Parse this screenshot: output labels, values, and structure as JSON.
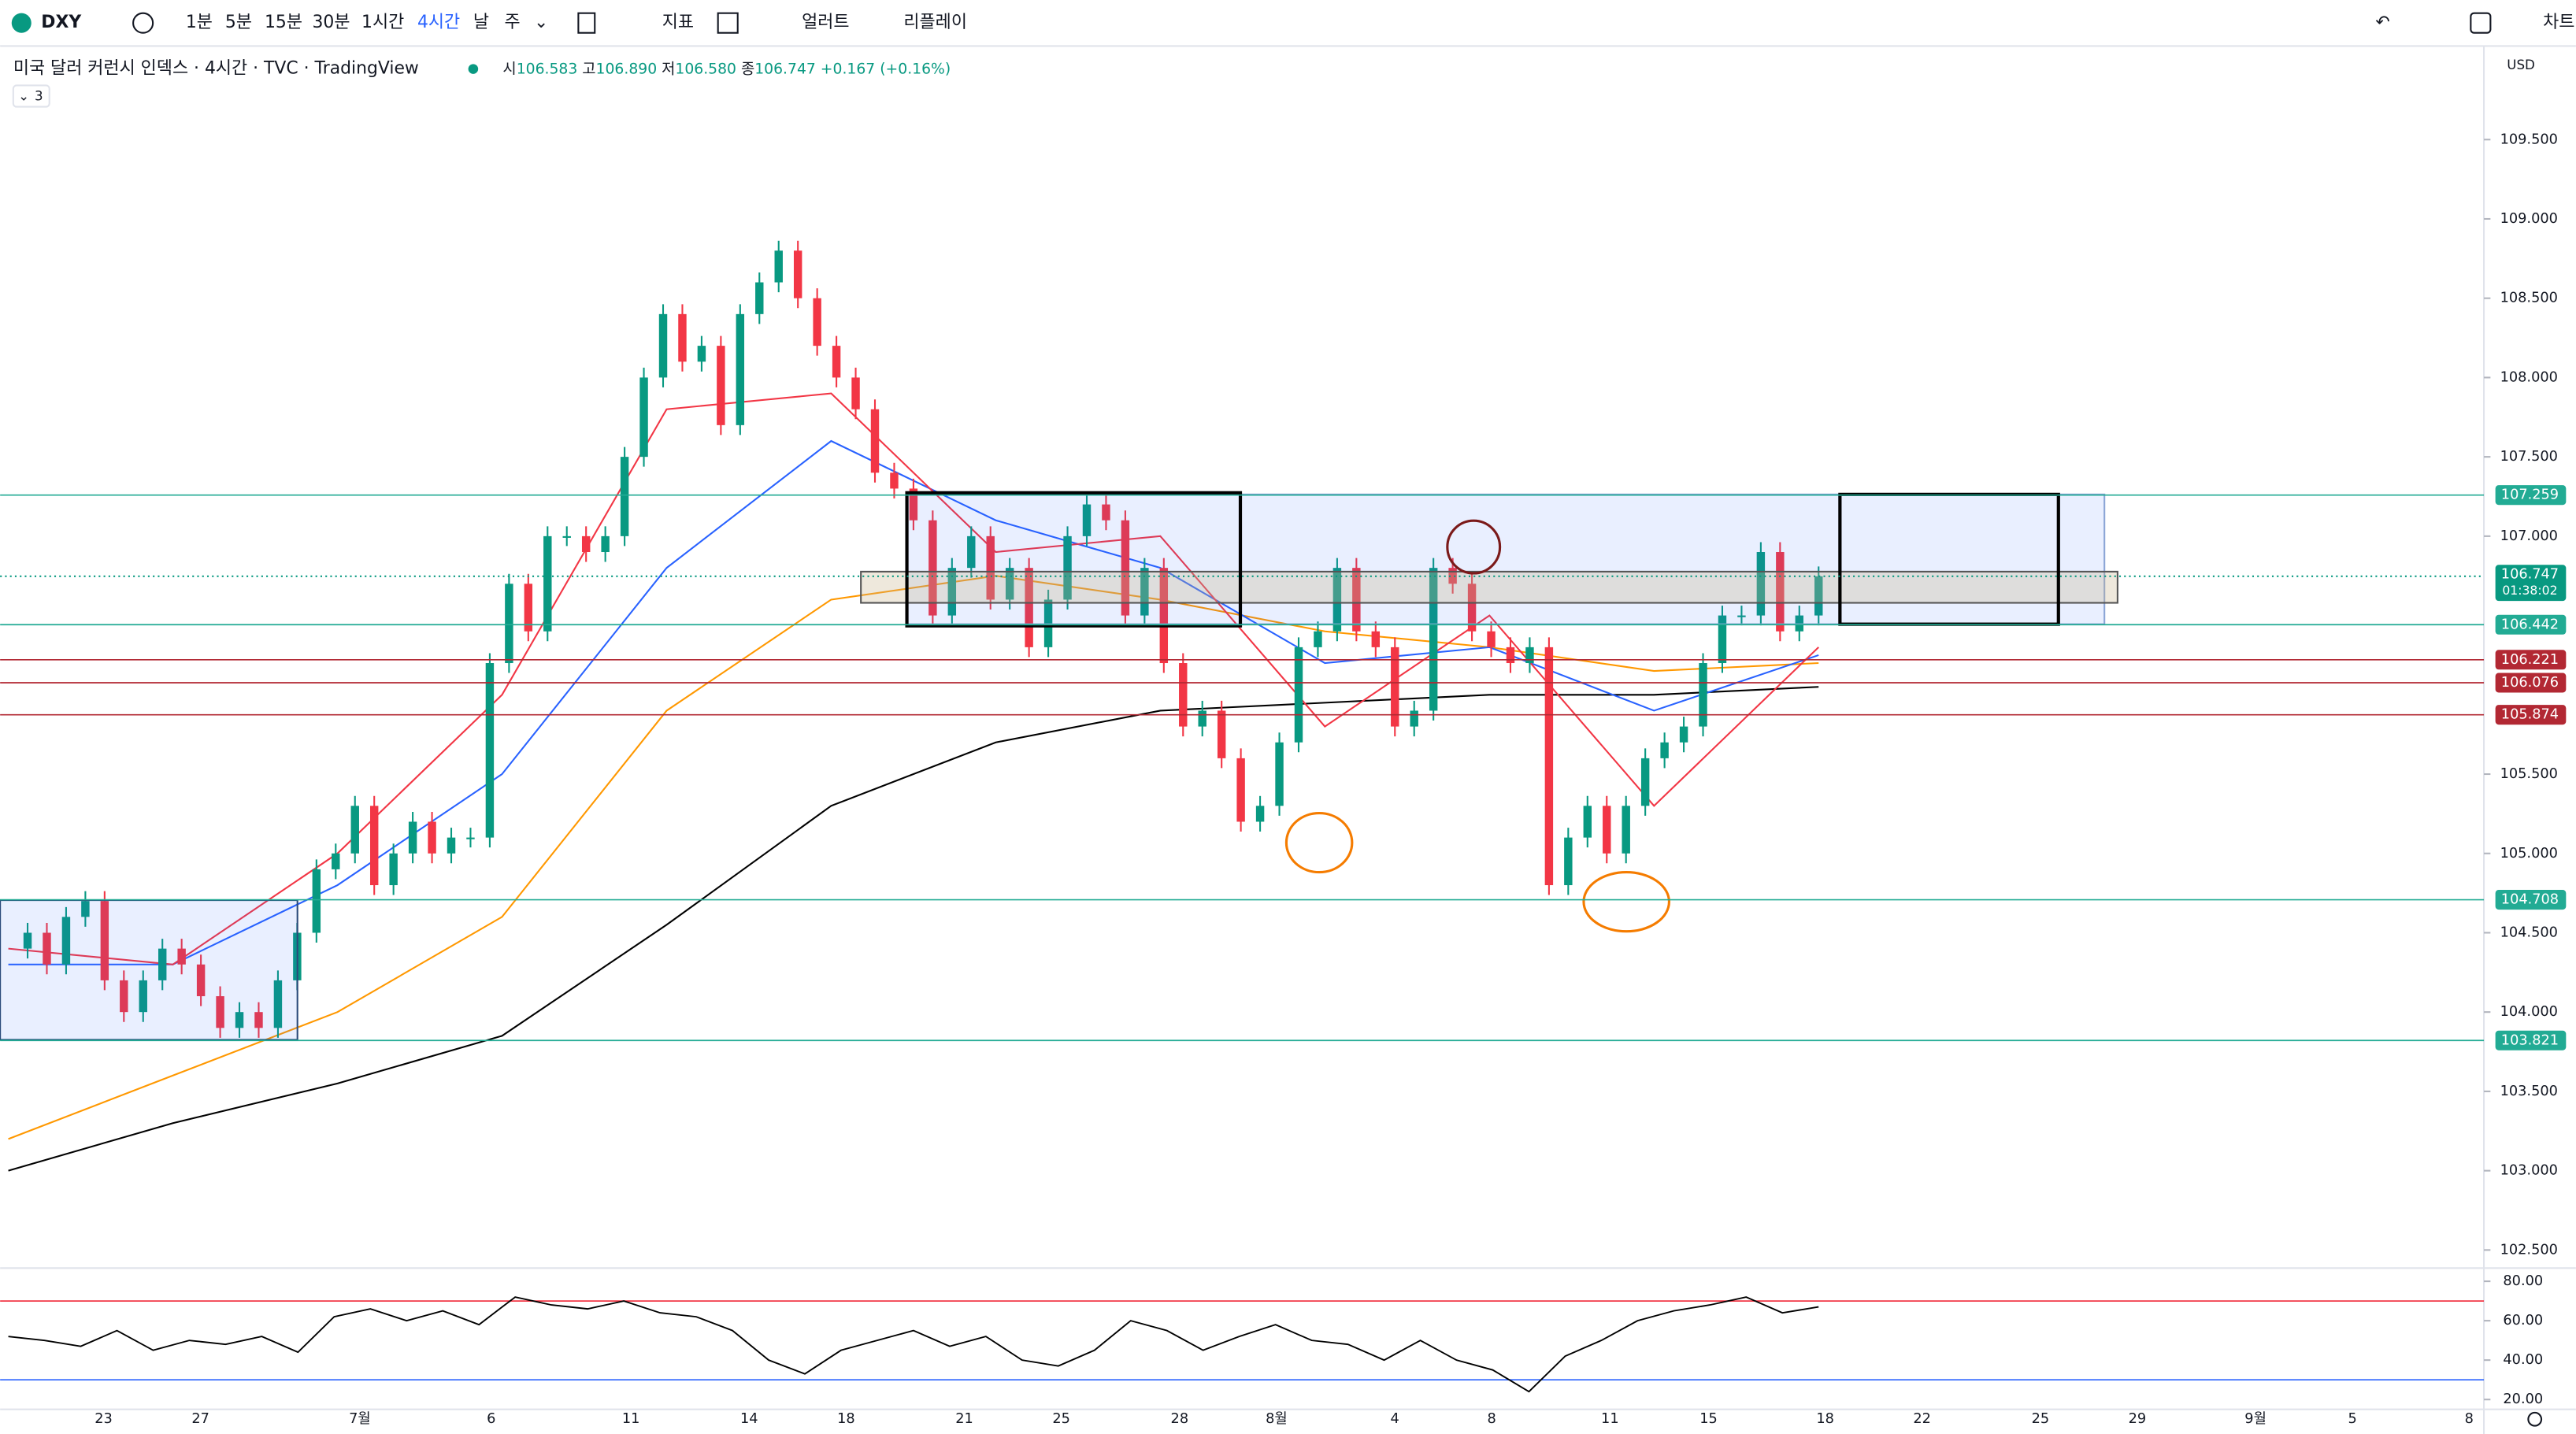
{
  "toolbar": {
    "symbol": "DXY",
    "intervals": [
      "1분",
      "5분",
      "15분",
      "30분",
      "1시간",
      "4시간",
      "날",
      "주"
    ],
    "indicators": "지표",
    "alerts": "얼러트",
    "replay": "리플레이",
    "chart": "차트"
  },
  "legend": {
    "title": "미국 달러 커런시 인덱스 · 4시간 · TVC · TradingView",
    "ohlc": [
      {
        "label": "시",
        "value": "106.583"
      },
      {
        "label": "고",
        "value": "106.890"
      },
      {
        "label": "저",
        "value": "106.580"
      },
      {
        "label": "종",
        "value": "106.747"
      }
    ],
    "change": "+0.167 (+0.16%)",
    "indicator_count": "3"
  },
  "chart_data": {
    "type": "candlestick",
    "currency": "USD",
    "up_color": "#089981",
    "down_color": "#f23645",
    "closes": [
      104.4,
      104.5,
      104.3,
      104.6,
      104.7,
      104.2,
      104.0,
      104.2,
      104.4,
      104.3,
      104.1,
      103.9,
      104.0,
      103.9,
      104.2,
      104.5,
      104.9,
      105.0,
      105.3,
      104.8,
      105.0,
      105.2,
      105.0,
      105.1,
      105.1,
      106.2,
      106.7,
      106.4,
      107.0,
      107.0,
      106.9,
      107.0,
      107.5,
      108.0,
      108.4,
      108.1,
      108.2,
      107.7,
      108.4,
      108.6,
      108.8,
      108.5,
      108.2,
      108.0,
      107.8,
      107.4,
      107.3,
      107.1,
      106.5,
      106.8,
      107.0,
      106.6,
      106.8,
      106.3,
      106.6,
      107.0,
      107.2,
      107.1,
      106.5,
      106.8,
      106.2,
      105.8,
      105.9,
      105.6,
      105.2,
      105.3,
      105.7,
      106.3,
      106.4,
      106.8,
      106.4,
      106.3,
      105.8,
      105.9,
      106.8,
      106.7,
      106.4,
      106.3,
      106.2,
      106.3,
      104.8,
      105.1,
      105.3,
      105.0,
      105.3,
      105.6,
      105.7,
      105.8,
      106.2,
      106.5,
      106.5,
      106.9,
      106.4,
      106.5,
      106.747
    ],
    "moving_averages": [
      {
        "color": "#000000",
        "values": [
          103.0,
          103.3,
          103.55,
          103.85,
          104.55,
          105.3,
          105.7,
          105.9,
          105.95,
          106.0,
          106.0,
          106.05
        ]
      },
      {
        "color": "#ff9800",
        "values": [
          103.2,
          103.6,
          104.0,
          104.6,
          105.9,
          106.6,
          106.75,
          106.6,
          106.4,
          106.3,
          106.15,
          106.2
        ]
      },
      {
        "color": "#2962ff",
        "values": [
          104.3,
          104.3,
          104.8,
          105.5,
          106.8,
          107.6,
          107.1,
          106.8,
          106.2,
          106.3,
          105.9,
          106.25
        ]
      },
      {
        "color": "#f23645",
        "values": [
          104.4,
          104.3,
          105.0,
          106.0,
          107.8,
          107.9,
          106.9,
          107.0,
          105.8,
          106.5,
          105.3,
          106.3
        ]
      }
    ],
    "ylim": [
      102.386,
      110.09
    ],
    "yticks": [
      {
        "value": 109.5,
        "label": "109.500"
      },
      {
        "value": 109,
        "label": "109.000"
      },
      {
        "value": 108.5,
        "label": "108.500"
      },
      {
        "value": 108,
        "label": "108.000"
      },
      {
        "value": 107.5,
        "label": "107.500"
      },
      {
        "value": 107,
        "label": "107.000"
      },
      {
        "value": 105.5,
        "label": "105.500"
      },
      {
        "value": 105,
        "label": "105.000"
      },
      {
        "value": 104.5,
        "label": "104.500"
      },
      {
        "value": 104,
        "label": "104.000"
      },
      {
        "value": 103.5,
        "label": "103.500"
      },
      {
        "value": 103,
        "label": "103.000"
      },
      {
        "value": 102.5,
        "label": "102.500"
      }
    ],
    "price_lines": [
      {
        "value": 107.259,
        "color": "#22ab94"
      },
      {
        "value": 106.442,
        "color": "#22ab94"
      },
      {
        "value": 106.221,
        "color": "#b22833"
      },
      {
        "value": 106.076,
        "color": "#b22833"
      },
      {
        "value": 105.874,
        "color": "#b22833"
      },
      {
        "value": 104.708,
        "color": "#22ab94"
      },
      {
        "value": 103.821,
        "color": "#22ab94"
      }
    ],
    "last_price": {
      "value": 106.747,
      "countdown": "01:38:02",
      "color": "#089981"
    },
    "x_labels": [
      "23",
      "27",
      "7월",
      "6",
      "11",
      "14",
      "18",
      "21",
      "25",
      "28",
      "8월",
      "4",
      "8",
      "11",
      "15",
      "18",
      "22",
      "25",
      "29",
      "9월",
      "5",
      "8"
    ],
    "rsi": {
      "color": "#000000",
      "values": [
        52,
        50,
        47,
        55,
        45,
        50,
        48,
        52,
        44,
        62,
        66,
        60,
        65,
        58,
        72,
        68,
        66,
        70,
        64,
        62,
        55,
        40,
        33,
        45,
        50,
        55,
        47,
        52,
        40,
        37,
        45,
        60,
        55,
        45,
        52,
        58,
        50,
        48,
        40,
        50,
        40,
        35,
        24,
        42,
        50,
        60,
        65,
        68,
        72,
        64,
        67
      ],
      "ylim": [
        15,
        86.7
      ],
      "yticks": [
        {
          "value": 80,
          "label": "80.00"
        },
        {
          "value": 60,
          "label": "60.00"
        },
        {
          "value": 40,
          "label": "40.00"
        },
        {
          "value": 20,
          "label": "20.00"
        }
      ],
      "upper": 70,
      "lower": 30,
      "upper_color": "#f23645",
      "lower_color": "#2962ff"
    }
  }
}
